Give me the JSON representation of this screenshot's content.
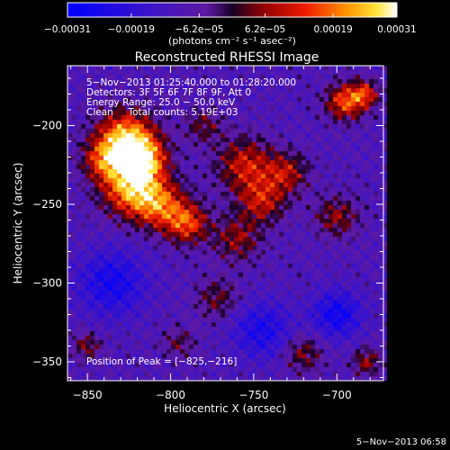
{
  "chart_data": {
    "type": "heatmap",
    "title": "Reconstructed RHESSI Image",
    "xlabel": "Heliocentric X (arcsec)",
    "ylabel": "Heliocentric Y (arcsec)",
    "xlim": [
      -862,
      -672
    ],
    "ylim": [
      -362,
      -162
    ],
    "xticks": [
      -850,
      -800,
      -750,
      -700
    ],
    "yticks": [
      -200,
      -250,
      -300,
      -350
    ],
    "xtick_labels": [
      "−850",
      "−800",
      "−750",
      "−700"
    ],
    "ytick_labels": [
      "−200",
      "−250",
      "−300",
      "−350"
    ],
    "colorbar": {
      "range": [
        -0.00031,
        0.00031
      ],
      "ticks": [
        -0.00031,
        -0.00019,
        -6.2e-05,
        6.2e-05,
        0.00019,
        0.00031
      ],
      "tick_labels": [
        "−0.00031",
        "−0.00019",
        "−6.2e−05",
        "6.2e−05",
        "0.00019",
        "0.00031"
      ],
      "unit_label": "(photons cm⁻² s⁻¹ asec⁻²)"
    },
    "annotations": [
      "5−Nov−2013 01:25:40.000 to 01:28:20.000",
      "Detectors: 3F 5F 6F 7F 8F 9F, Att 0",
      "Energy Range: 25.0 − 50.0 keV",
      "Clean     Total counts: 5.19E+03"
    ],
    "peak_label": "Position of Peak = [−825,−216]",
    "peak_position": [
      -825,
      -216
    ],
    "bright_sources": [
      {
        "x": -827,
        "y": -208,
        "peak": 1.0,
        "spread": 12
      },
      {
        "x": -817,
        "y": -222,
        "peak": 0.95,
        "spread": 10
      },
      {
        "x": -825,
        "y": -240,
        "peak": 0.85,
        "spread": 12
      },
      {
        "x": -807,
        "y": -250,
        "peak": 0.75,
        "spread": 11
      },
      {
        "x": -840,
        "y": -222,
        "peak": 0.6,
        "spread": 9
      },
      {
        "x": -790,
        "y": -262,
        "peak": 0.7,
        "spread": 9
      },
      {
        "x": -755,
        "y": -225,
        "peak": 0.6,
        "spread": 12
      },
      {
        "x": -745,
        "y": -248,
        "peak": 0.55,
        "spread": 10
      },
      {
        "x": -730,
        "y": -230,
        "peak": 0.5,
        "spread": 9
      },
      {
        "x": -695,
        "y": -185,
        "peak": 0.75,
        "spread": 8
      },
      {
        "x": -683,
        "y": -180,
        "peak": 0.6,
        "spread": 6
      },
      {
        "x": -700,
        "y": -258,
        "peak": 0.45,
        "spread": 9
      },
      {
        "x": -760,
        "y": -272,
        "peak": 0.45,
        "spread": 10
      },
      {
        "x": -772,
        "y": -310,
        "peak": 0.35,
        "spread": 9
      },
      {
        "x": -850,
        "y": -340,
        "peak": 0.4,
        "spread": 6
      },
      {
        "x": -795,
        "y": -338,
        "peak": 0.3,
        "spread": 7
      },
      {
        "x": -720,
        "y": -345,
        "peak": 0.4,
        "spread": 8
      },
      {
        "x": -682,
        "y": -350,
        "peak": 0.45,
        "spread": 6
      },
      {
        "x": -780,
        "y": -200,
        "peak": 0.35,
        "spread": 8
      }
    ],
    "dim_regions": [
      {
        "x": -835,
        "y": -300,
        "depth": 0.5,
        "spread": 14
      },
      {
        "x": -700,
        "y": -320,
        "depth": 0.55,
        "spread": 10
      },
      {
        "x": -745,
        "y": -330,
        "depth": 0.45,
        "spread": 12
      }
    ],
    "background_level": -0.0001,
    "colors": {
      "background": "#000000",
      "text": "#ffffff",
      "colormap_low": "#0000ff",
      "colormap_mid": "#000000",
      "colormap_high": "#ffffff"
    }
  },
  "footer": {
    "timestamp": "5−Nov−2013 06:58"
  }
}
